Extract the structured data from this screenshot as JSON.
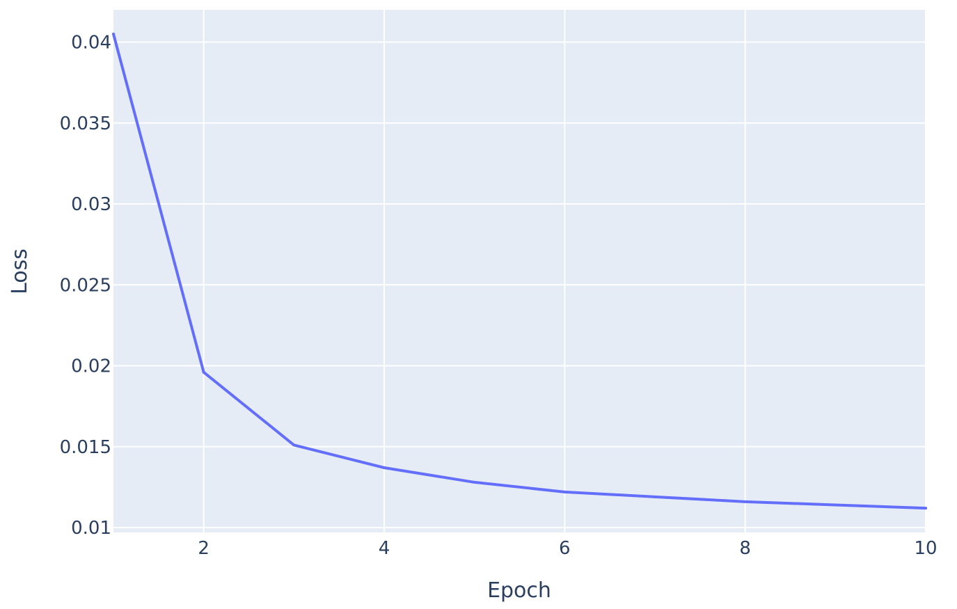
{
  "chart_data": {
    "type": "line",
    "title": "",
    "xlabel": "Epoch",
    "ylabel": "Loss",
    "xlim": [
      1,
      10
    ],
    "ylim": [
      0.0097,
      0.042
    ],
    "x_ticks": [
      2,
      4,
      6,
      8,
      10
    ],
    "y_ticks": [
      0.01,
      0.015,
      0.02,
      0.025,
      0.03,
      0.035,
      0.04
    ],
    "x_tick_labels": [
      "2",
      "4",
      "6",
      "8",
      "10"
    ],
    "y_tick_labels": [
      "0.01",
      "0.015",
      "0.02",
      "0.025",
      "0.03",
      "0.035",
      "0.04"
    ],
    "grid": true,
    "legend": "none",
    "series": [
      {
        "x": [
          1,
          2,
          3,
          4,
          5,
          6,
          7,
          8,
          9,
          10
        ],
        "values": [
          0.0405,
          0.0196,
          0.0151,
          0.0137,
          0.0128,
          0.0122,
          0.0119,
          0.0116,
          0.0114,
          0.0112
        ],
        "color": "#636efa"
      }
    ],
    "colors": {
      "plot_background": "#e5ecf6",
      "grid": "#ffffff",
      "text": "#2a3f5f",
      "line": "#636efa"
    }
  }
}
